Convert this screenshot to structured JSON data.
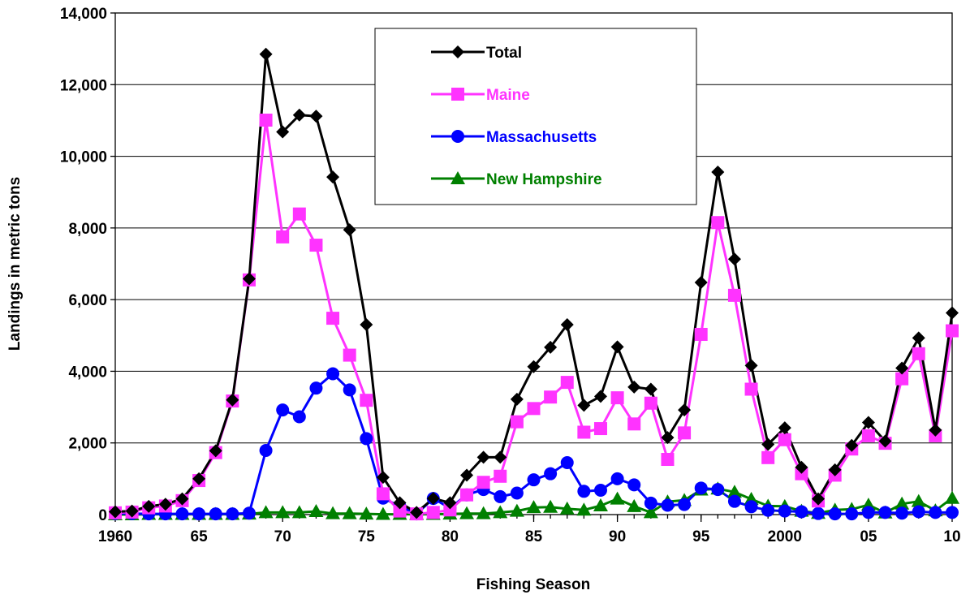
{
  "chart_data": {
    "type": "line",
    "title": "",
    "xlabel": "Fishing Season",
    "ylabel": "Landings in metric tons",
    "xlim": [
      1960,
      2010
    ],
    "ylim": [
      0,
      14000
    ],
    "yticks": [
      0,
      2000,
      4000,
      6000,
      8000,
      10000,
      12000,
      14000
    ],
    "ytick_labels": [
      "0",
      "2,000",
      "4,000",
      "6,000",
      "8,000",
      "10,000",
      "12,000",
      "14,000"
    ],
    "xticks": [
      1960,
      1965,
      1970,
      1975,
      1980,
      1985,
      1990,
      1995,
      2000,
      2005,
      2010
    ],
    "xtick_labels": [
      "1960",
      "65",
      "70",
      "75",
      "80",
      "85",
      "90",
      "95",
      "2000",
      "05",
      "10"
    ],
    "grid": "horizontal",
    "legend_position": "top-center",
    "x": [
      1960,
      1961,
      1962,
      1963,
      1964,
      1965,
      1966,
      1967,
      1968,
      1969,
      1970,
      1971,
      1972,
      1973,
      1974,
      1975,
      1976,
      1977,
      1978,
      1979,
      1980,
      1981,
      1982,
      1983,
      1984,
      1985,
      1986,
      1987,
      1988,
      1989,
      1990,
      1991,
      1992,
      1993,
      1994,
      1995,
      1996,
      1997,
      1998,
      1999,
      2000,
      2001,
      2002,
      2003,
      2004,
      2005,
      2006,
      2007,
      2008,
      2009,
      2010
    ],
    "series": [
      {
        "name": "Total",
        "color": "#000000",
        "marker": "diamond",
        "values": [
          80,
          100,
          230,
          290,
          440,
          1000,
          1780,
          3200,
          6580,
          12850,
          10680,
          11150,
          11120,
          9420,
          7950,
          5300,
          1040,
          330,
          60,
          450,
          330,
          1100,
          1600,
          1600,
          3220,
          4130,
          4670,
          5300,
          3050,
          3300,
          4680,
          3560,
          3500,
          2150,
          2920,
          6480,
          9560,
          7130,
          4160,
          1960,
          2420,
          1320,
          440,
          1250,
          1930,
          2570,
          2050,
          4090,
          4930,
          2360,
          5630
        ]
      },
      {
        "name": "Maine",
        "color": "#ff33ff",
        "marker": "square",
        "values": [
          50,
          70,
          190,
          240,
          390,
          950,
          1730,
          3170,
          6550,
          11010,
          7750,
          8390,
          7520,
          5480,
          4450,
          3190,
          580,
          100,
          20,
          60,
          130,
          550,
          900,
          1070,
          2590,
          2960,
          3280,
          3690,
          2300,
          2400,
          3260,
          2530,
          3110,
          1540,
          2280,
          5030,
          8150,
          6120,
          3500,
          1590,
          2090,
          1140,
          380,
          1100,
          1830,
          2200,
          1990,
          3790,
          4490,
          2200,
          5130
        ]
      },
      {
        "name": "Massachusetts",
        "color": "#0000ff",
        "marker": "circle",
        "values": [
          30,
          30,
          20,
          20,
          20,
          20,
          20,
          20,
          40,
          1790,
          2920,
          2730,
          3530,
          3930,
          3480,
          2120,
          460,
          230,
          20,
          450,
          180,
          550,
          700,
          500,
          600,
          970,
          1140,
          1450,
          650,
          680,
          1000,
          830,
          320,
          260,
          280,
          740,
          700,
          370,
          220,
          120,
          100,
          80,
          30,
          20,
          20,
          60,
          60,
          40,
          80,
          60,
          60
        ]
      },
      {
        "name": "New Hampshire",
        "color": "#008000",
        "marker": "triangle",
        "values": [
          0,
          0,
          10,
          10,
          10,
          10,
          10,
          10,
          20,
          60,
          60,
          60,
          90,
          30,
          30,
          20,
          10,
          10,
          10,
          10,
          20,
          30,
          30,
          60,
          100,
          200,
          210,
          160,
          130,
          250,
          440,
          230,
          60,
          360,
          400,
          690,
          720,
          630,
          430,
          240,
          230,
          100,
          40,
          130,
          150,
          270,
          50,
          300,
          370,
          110,
          460
        ]
      }
    ]
  }
}
